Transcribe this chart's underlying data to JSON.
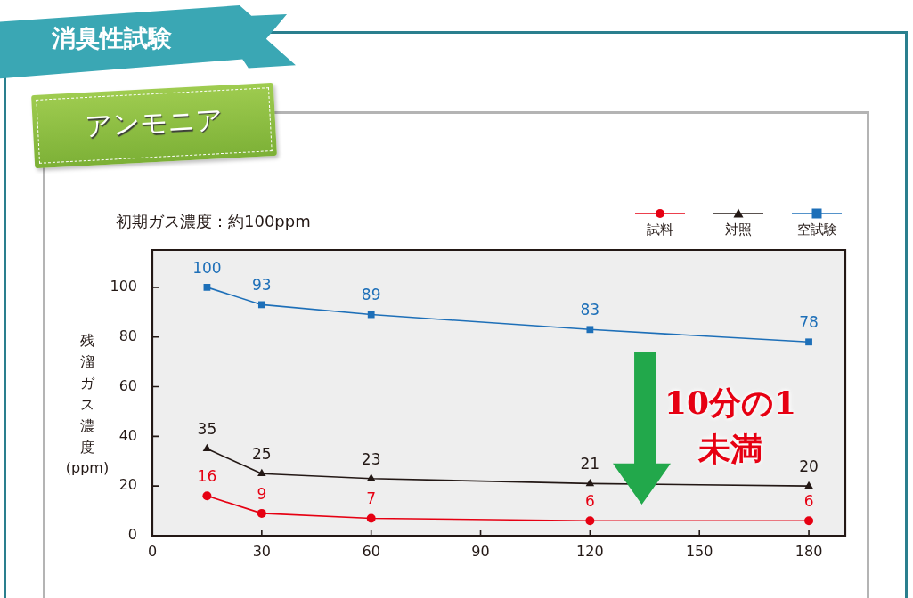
{
  "chart_data": {
    "type": "line",
    "title": "消臭性試験",
    "subtitle": "アンモニア",
    "ylabel": "残溜ガス濃度\n(ppm)",
    "annotations": [
      "初期ガス濃度：約100ppm",
      "10分の1\n未満"
    ],
    "x": [
      15,
      30,
      60,
      120,
      180
    ],
    "series": [
      {
        "name": "試料",
        "color": "#e60012",
        "marker": "circle",
        "values": [
          16,
          9,
          7,
          6,
          6
        ]
      },
      {
        "name": "対照",
        "color": "#231815",
        "marker": "triangle",
        "values": [
          35,
          25,
          23,
          21,
          20
        ]
      },
      {
        "name": "空試験",
        "color": "#1d6fb8",
        "marker": "square",
        "values": [
          100,
          93,
          89,
          83,
          78
        ]
      }
    ],
    "xlim": [
      0,
      190
    ],
    "ylim": [
      0,
      115
    ],
    "xticks": [
      0,
      30,
      60,
      90,
      120,
      150,
      180
    ],
    "yticks": [
      0,
      20,
      40,
      60,
      80,
      100
    ],
    "legend": "top right",
    "data_labels": true
  }
}
